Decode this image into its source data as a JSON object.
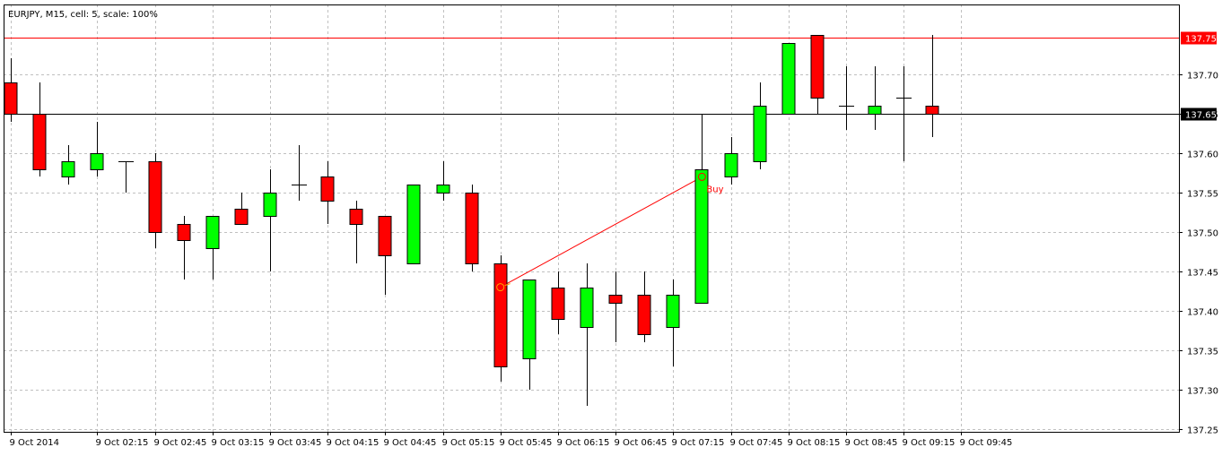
{
  "header": {
    "title": "EURJPY, M15, cell: 5, scale: 100%"
  },
  "chart_data": {
    "type": "candlestick",
    "symbol": "EURJPY",
    "timeframe": "M15",
    "ylim": [
      137.25,
      137.79
    ],
    "y_ticks": [
      "137.70",
      "137.65",
      "137.60",
      "137.55",
      "137.50",
      "137.45",
      "137.40",
      "137.35",
      "137.30",
      "137.25"
    ],
    "x_ticks": [
      {
        "label": "9 Oct 2014",
        "index": 0
      },
      {
        "label": "9 Oct 02:15",
        "index": 3
      },
      {
        "label": "9 Oct 02:45",
        "index": 5
      },
      {
        "label": "9 Oct 03:15",
        "index": 7
      },
      {
        "label": "9 Oct 03:45",
        "index": 9
      },
      {
        "label": "9 Oct 04:15",
        "index": 11
      },
      {
        "label": "9 Oct 04:45",
        "index": 13
      },
      {
        "label": "9 Oct 05:15",
        "index": 15
      },
      {
        "label": "9 Oct 05:45",
        "index": 17
      },
      {
        "label": "9 Oct 06:15",
        "index": 19
      },
      {
        "label": "9 Oct 06:45",
        "index": 21
      },
      {
        "label": "9 Oct 07:15",
        "index": 23
      },
      {
        "label": "9 Oct 07:45",
        "index": 25
      },
      {
        "label": "9 Oct 08:15",
        "index": 27
      },
      {
        "label": "9 Oct 08:45",
        "index": 29
      },
      {
        "label": "9 Oct 09:15",
        "index": 31
      },
      {
        "label": "9 Oct 09:45",
        "index": 33
      }
    ],
    "candles": [
      {
        "o": 137.69,
        "h": 137.72,
        "l": 137.64,
        "c": 137.65
      },
      {
        "o": 137.65,
        "h": 137.69,
        "l": 137.57,
        "c": 137.58
      },
      {
        "o": 137.57,
        "h": 137.61,
        "l": 137.56,
        "c": 137.59
      },
      {
        "o": 137.58,
        "h": 137.64,
        "l": 137.57,
        "c": 137.6
      },
      {
        "o": 137.59,
        "h": 137.59,
        "l": 137.55,
        "c": 137.59
      },
      {
        "o": 137.59,
        "h": 137.6,
        "l": 137.48,
        "c": 137.5
      },
      {
        "o": 137.51,
        "h": 137.52,
        "l": 137.44,
        "c": 137.49
      },
      {
        "o": 137.48,
        "h": 137.52,
        "l": 137.44,
        "c": 137.52
      },
      {
        "o": 137.53,
        "h": 137.55,
        "l": 137.51,
        "c": 137.51
      },
      {
        "o": 137.52,
        "h": 137.58,
        "l": 137.45,
        "c": 137.55
      },
      {
        "o": 137.56,
        "h": 137.61,
        "l": 137.54,
        "c": 137.56
      },
      {
        "o": 137.57,
        "h": 137.59,
        "l": 137.51,
        "c": 137.54
      },
      {
        "o": 137.53,
        "h": 137.54,
        "l": 137.46,
        "c": 137.51
      },
      {
        "o": 137.52,
        "h": 137.52,
        "l": 137.42,
        "c": 137.47
      },
      {
        "o": 137.46,
        "h": 137.56,
        "l": 137.46,
        "c": 137.56
      },
      {
        "o": 137.55,
        "h": 137.59,
        "l": 137.54,
        "c": 137.56
      },
      {
        "o": 137.55,
        "h": 137.56,
        "l": 137.45,
        "c": 137.46
      },
      {
        "o": 137.46,
        "h": 137.47,
        "l": 137.31,
        "c": 137.33
      },
      {
        "o": 137.34,
        "h": 137.44,
        "l": 137.3,
        "c": 137.44
      },
      {
        "o": 137.43,
        "h": 137.45,
        "l": 137.37,
        "c": 137.39
      },
      {
        "o": 137.38,
        "h": 137.46,
        "l": 137.28,
        "c": 137.43
      },
      {
        "o": 137.42,
        "h": 137.45,
        "l": 137.36,
        "c": 137.41
      },
      {
        "o": 137.42,
        "h": 137.45,
        "l": 137.36,
        "c": 137.37
      },
      {
        "o": 137.38,
        "h": 137.44,
        "l": 137.33,
        "c": 137.42
      },
      {
        "o": 137.41,
        "h": 137.65,
        "l": 137.41,
        "c": 137.58
      },
      {
        "o": 137.57,
        "h": 137.62,
        "l": 137.56,
        "c": 137.6
      },
      {
        "o": 137.59,
        "h": 137.69,
        "l": 137.58,
        "c": 137.66
      },
      {
        "o": 137.65,
        "h": 137.74,
        "l": 137.65,
        "c": 137.74
      },
      {
        "o": 137.75,
        "h": 137.75,
        "l": 137.65,
        "c": 137.67
      },
      {
        "o": 137.66,
        "h": 137.71,
        "l": 137.63,
        "c": 137.66
      },
      {
        "o": 137.65,
        "h": 137.71,
        "l": 137.63,
        "c": 137.66
      },
      {
        "o": 137.67,
        "h": 137.71,
        "l": 137.59,
        "c": 137.67
      },
      {
        "o": 137.66,
        "h": 137.75,
        "l": 137.62,
        "c": 137.65
      }
    ],
    "bid_line": {
      "price": 137.65,
      "label": "137.65"
    },
    "ask_line": {
      "price": 137.747,
      "label": "137.75"
    },
    "trade": {
      "label": "Buy",
      "entry": {
        "index": 17,
        "price": 137.43
      },
      "exit": {
        "index": 24,
        "price": 137.57
      }
    },
    "colors": {
      "bull": "#00ff00",
      "bear": "#ff0000",
      "outline": "#000000",
      "grid": "#c0c0c0",
      "ask": "#ff0000",
      "bid": "#000000",
      "trade_line": "#ff0000",
      "entry_marker": "#ffa500",
      "exit_marker": "#ff0000"
    },
    "grid": true
  }
}
